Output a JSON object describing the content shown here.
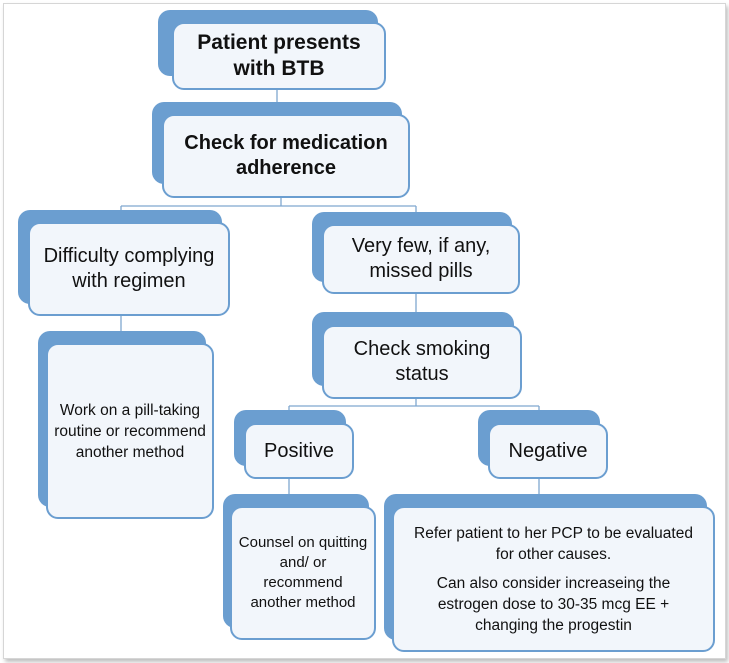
{
  "colors": {
    "accent": "#6b9ed0",
    "box_fill": "#f2f6fb",
    "line": "#7fa7cf"
  },
  "nodes": {
    "start": "Patient presents with BTB",
    "check_adherence": "Check for medication adherence",
    "difficulty": "Difficulty complying with regimen",
    "few_missed": "Very few, if any, missed pills",
    "pill_routine": "Work on a pill-taking routine or recommend another method",
    "check_smoking": "Check smoking status",
    "positive": "Positive",
    "negative": "Negative",
    "counsel": "Counsel on quitting and/ or recommend another method",
    "refer": "Refer patient to her PCP to be evaluated for other causes.",
    "consider": "Can also consider increaseing the estrogen dose to 30-35 mcg EE + changing the progestin"
  }
}
